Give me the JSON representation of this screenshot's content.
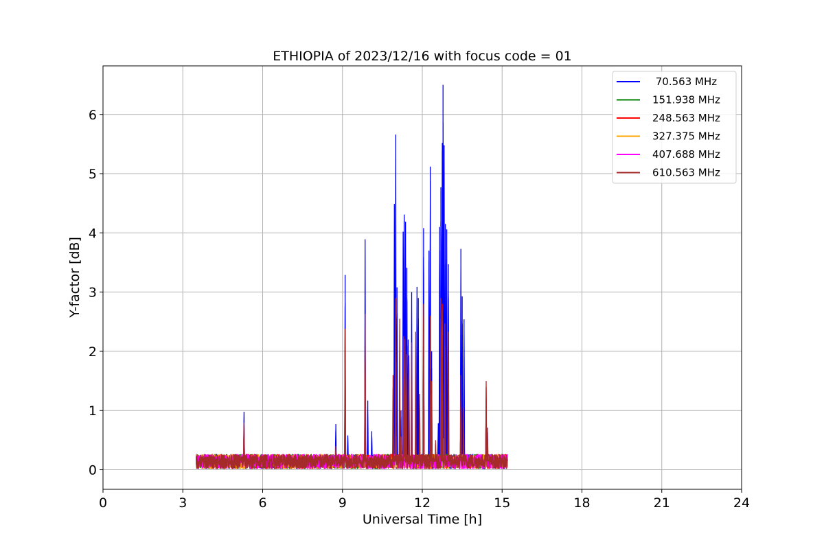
{
  "chart_data": {
    "type": "line",
    "title": "ETHIOPIA of 2023/12/16 with focus code = 01",
    "xlabel": "Universal Time [h]",
    "ylabel": "Y-factor [dB]",
    "xlim": [
      0,
      24
    ],
    "ylim": [
      -0.33,
      6.82
    ],
    "xticks": [
      0,
      3,
      6,
      9,
      12,
      15,
      18,
      21,
      24
    ],
    "xtick_labels": [
      "0",
      "3",
      "6",
      "9",
      "12",
      "15",
      "18",
      "21",
      "24"
    ],
    "yticks": [
      0,
      1,
      2,
      3,
      4,
      5,
      6
    ],
    "ytick_labels": [
      "0",
      "1",
      "2",
      "3",
      "4",
      "5",
      "6"
    ],
    "grid": true,
    "legend_position": "top-right",
    "data_range_x": [
      3.5,
      15.2
    ],
    "baseline": 0.14,
    "series": [
      {
        "name": " 70.563 MHz",
        "color": "#0000ff",
        "peaks": [
          [
            5.3,
            0.98
          ],
          [
            8.75,
            0.77
          ],
          [
            9.1,
            3.29
          ],
          [
            9.2,
            0.58
          ],
          [
            9.85,
            3.89
          ],
          [
            9.95,
            1.17
          ],
          [
            10.1,
            0.65
          ],
          [
            10.95,
            4.49
          ],
          [
            11.0,
            5.66
          ],
          [
            11.05,
            3.08
          ],
          [
            11.2,
            1.0
          ],
          [
            11.28,
            4.02
          ],
          [
            11.32,
            4.31
          ],
          [
            11.37,
            4.19
          ],
          [
            11.42,
            3.41
          ],
          [
            11.47,
            2.2
          ],
          [
            11.6,
            3.0
          ],
          [
            11.8,
            3.09
          ],
          [
            11.85,
            2.9
          ],
          [
            12.05,
            4.08
          ],
          [
            12.25,
            3.7
          ],
          [
            12.3,
            5.12
          ],
          [
            12.35,
            2.0
          ],
          [
            12.6,
            0.78
          ],
          [
            12.65,
            4.1
          ],
          [
            12.7,
            4.77
          ],
          [
            12.75,
            5.52
          ],
          [
            12.78,
            6.5
          ],
          [
            12.82,
            5.48
          ],
          [
            12.87,
            4.15
          ],
          [
            12.92,
            4.06
          ],
          [
            12.98,
            3.47
          ],
          [
            13.45,
            3.73
          ],
          [
            13.5,
            2.93
          ],
          [
            13.57,
            2.54
          ],
          [
            14.4,
            0.82
          ],
          [
            14.45,
            0.71
          ]
        ]
      },
      {
        "name": "151.938 MHz",
        "color": "#008000",
        "peaks": [
          [
            5.3,
            0.7
          ],
          [
            9.1,
            2.0
          ],
          [
            9.85,
            2.2
          ],
          [
            11.0,
            2.6
          ],
          [
            11.3,
            2.1
          ],
          [
            12.05,
            2.4
          ],
          [
            12.75,
            2.6
          ],
          [
            13.45,
            1.2
          ],
          [
            14.4,
            1.2
          ]
        ]
      },
      {
        "name": "248.563 MHz",
        "color": "#ff0000",
        "peaks": [
          [
            5.3,
            0.75
          ],
          [
            9.1,
            2.2
          ],
          [
            9.85,
            2.4
          ],
          [
            11.0,
            2.8
          ],
          [
            11.3,
            2.2
          ],
          [
            12.05,
            2.6
          ],
          [
            12.75,
            2.8
          ],
          [
            13.45,
            1.3
          ],
          [
            14.4,
            1.4
          ]
        ]
      },
      {
        "name": "327.375 MHz",
        "color": "#ffa500",
        "peaks": [
          [
            5.3,
            0.6
          ],
          [
            9.1,
            1.8
          ],
          [
            9.85,
            2.0
          ],
          [
            11.0,
            2.3
          ],
          [
            12.05,
            2.2
          ],
          [
            12.75,
            2.4
          ],
          [
            13.45,
            1.0
          ],
          [
            14.4,
            1.1
          ]
        ]
      },
      {
        "name": "407.688 MHz",
        "color": "#ff00ff",
        "peaks": [
          [
            5.3,
            0.65
          ],
          [
            9.1,
            1.9
          ],
          [
            9.85,
            2.1
          ],
          [
            11.0,
            2.4
          ],
          [
            12.05,
            2.3
          ],
          [
            12.75,
            2.5
          ],
          [
            13.45,
            1.1
          ],
          [
            14.4,
            1.2
          ]
        ]
      },
      {
        "name": "610.563 MHz",
        "color": "#a52a2a",
        "peaks": [
          [
            5.3,
            0.8
          ],
          [
            8.75,
            0.4
          ],
          [
            9.1,
            2.38
          ],
          [
            9.85,
            2.63
          ],
          [
            10.9,
            1.6
          ],
          [
            11.0,
            2.9
          ],
          [
            11.15,
            2.55
          ],
          [
            11.2,
            0.56
          ],
          [
            11.3,
            2.25
          ],
          [
            11.35,
            2.21
          ],
          [
            11.4,
            1.95
          ],
          [
            11.5,
            1.93
          ],
          [
            11.6,
            2.15
          ],
          [
            11.75,
            2.33
          ],
          [
            11.9,
            1.28
          ],
          [
            12.05,
            2.8
          ],
          [
            12.3,
            2.6
          ],
          [
            12.35,
            1.5
          ],
          [
            12.5,
            0.5
          ],
          [
            12.7,
            2.9
          ],
          [
            12.75,
            2.7
          ],
          [
            12.85,
            2.47
          ],
          [
            12.98,
            2.33
          ],
          [
            13.45,
            1.6
          ],
          [
            13.55,
            1.05
          ],
          [
            14.4,
            1.5
          ],
          [
            14.45,
            0.7
          ]
        ]
      }
    ]
  }
}
